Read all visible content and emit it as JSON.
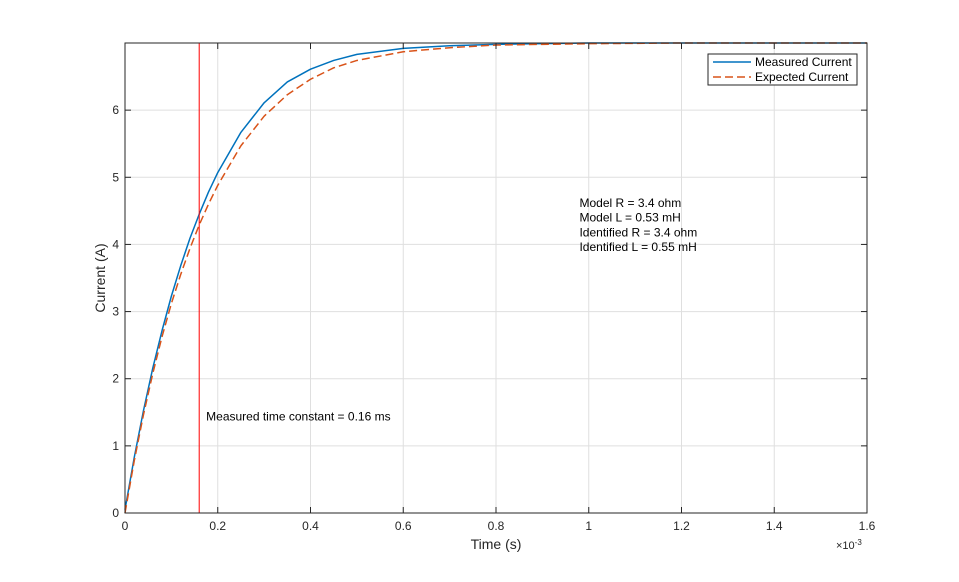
{
  "chart_data": {
    "type": "line",
    "xlabel": "Time (s)",
    "ylabel": "Current (A)",
    "x_exponent_label": "×10",
    "x_exponent_power": "-3",
    "xlim": [
      0,
      0.0016
    ],
    "ylim": [
      0,
      7
    ],
    "x_ticks": [
      0,
      0.0002,
      0.0004,
      0.0006,
      0.0008,
      0.001,
      0.0012,
      0.0014,
      0.0016
    ],
    "x_tick_labels": [
      "0",
      "0.2",
      "0.4",
      "0.6",
      "0.8",
      "1",
      "1.2",
      "1.4",
      "1.6"
    ],
    "y_ticks": [
      0,
      1,
      2,
      3,
      4,
      5,
      6
    ],
    "y_tick_labels": [
      "0",
      "1",
      "2",
      "3",
      "4",
      "5",
      "6"
    ],
    "grid": true,
    "legend_position": "top-right",
    "series": [
      {
        "name": "Measured Current",
        "color": "#0072BD",
        "style": "solid",
        "x": [
          0,
          2e-05,
          4e-05,
          6e-05,
          8e-05,
          0.0001,
          0.00012,
          0.00014,
          0.00016,
          0.00018,
          0.0002,
          0.00025,
          0.0003,
          0.00035,
          0.0004,
          0.00045,
          0.0005,
          0.0006,
          0.0007,
          0.0008,
          0.0009,
          0.001,
          0.0012,
          0.0014,
          0.0016
        ],
        "y": [
          0.05,
          0.83,
          1.53,
          2.16,
          2.72,
          3.23,
          3.68,
          4.09,
          4.45,
          4.78,
          5.07,
          5.67,
          6.11,
          6.42,
          6.61,
          6.74,
          6.83,
          6.92,
          6.96,
          6.98,
          6.99,
          7.0,
          7.0,
          7.0,
          7.0
        ]
      },
      {
        "name": "Expected Current",
        "color": "#D95319",
        "style": "dashed",
        "x": [
          0,
          2e-05,
          4e-05,
          6e-05,
          8e-05,
          0.0001,
          0.00012,
          0.00014,
          0.00016,
          0.00018,
          0.0002,
          0.00025,
          0.0003,
          0.00035,
          0.0004,
          0.00045,
          0.0005,
          0.0006,
          0.0007,
          0.0008,
          0.0009,
          0.001,
          0.0012,
          0.0014,
          0.0016
        ],
        "y": [
          0.0,
          0.78,
          1.47,
          2.08,
          2.63,
          3.12,
          3.55,
          3.94,
          4.29,
          4.6,
          4.88,
          5.47,
          5.91,
          6.23,
          6.46,
          6.63,
          6.74,
          6.87,
          6.93,
          6.97,
          6.98,
          6.99,
          7.0,
          7.0,
          7.0
        ]
      }
    ],
    "vertical_line": {
      "x": 0.00016,
      "color": "#FF0000"
    },
    "annotations": [
      {
        "text": "Measured time constant = 0.16 ms",
        "x": 0.000175,
        "y": 1.38
      },
      {
        "text": "Model R = 3.4 ohm",
        "x": 0.00098,
        "y": 4.56
      },
      {
        "text": "Model L = 0.53 mH",
        "x": 0.00098,
        "y": 4.34
      },
      {
        "text": "Identified R = 3.4 ohm",
        "x": 0.00098,
        "y": 4.12
      },
      {
        "text": "Identified L = 0.55 mH",
        "x": 0.00098,
        "y": 3.9
      }
    ]
  }
}
